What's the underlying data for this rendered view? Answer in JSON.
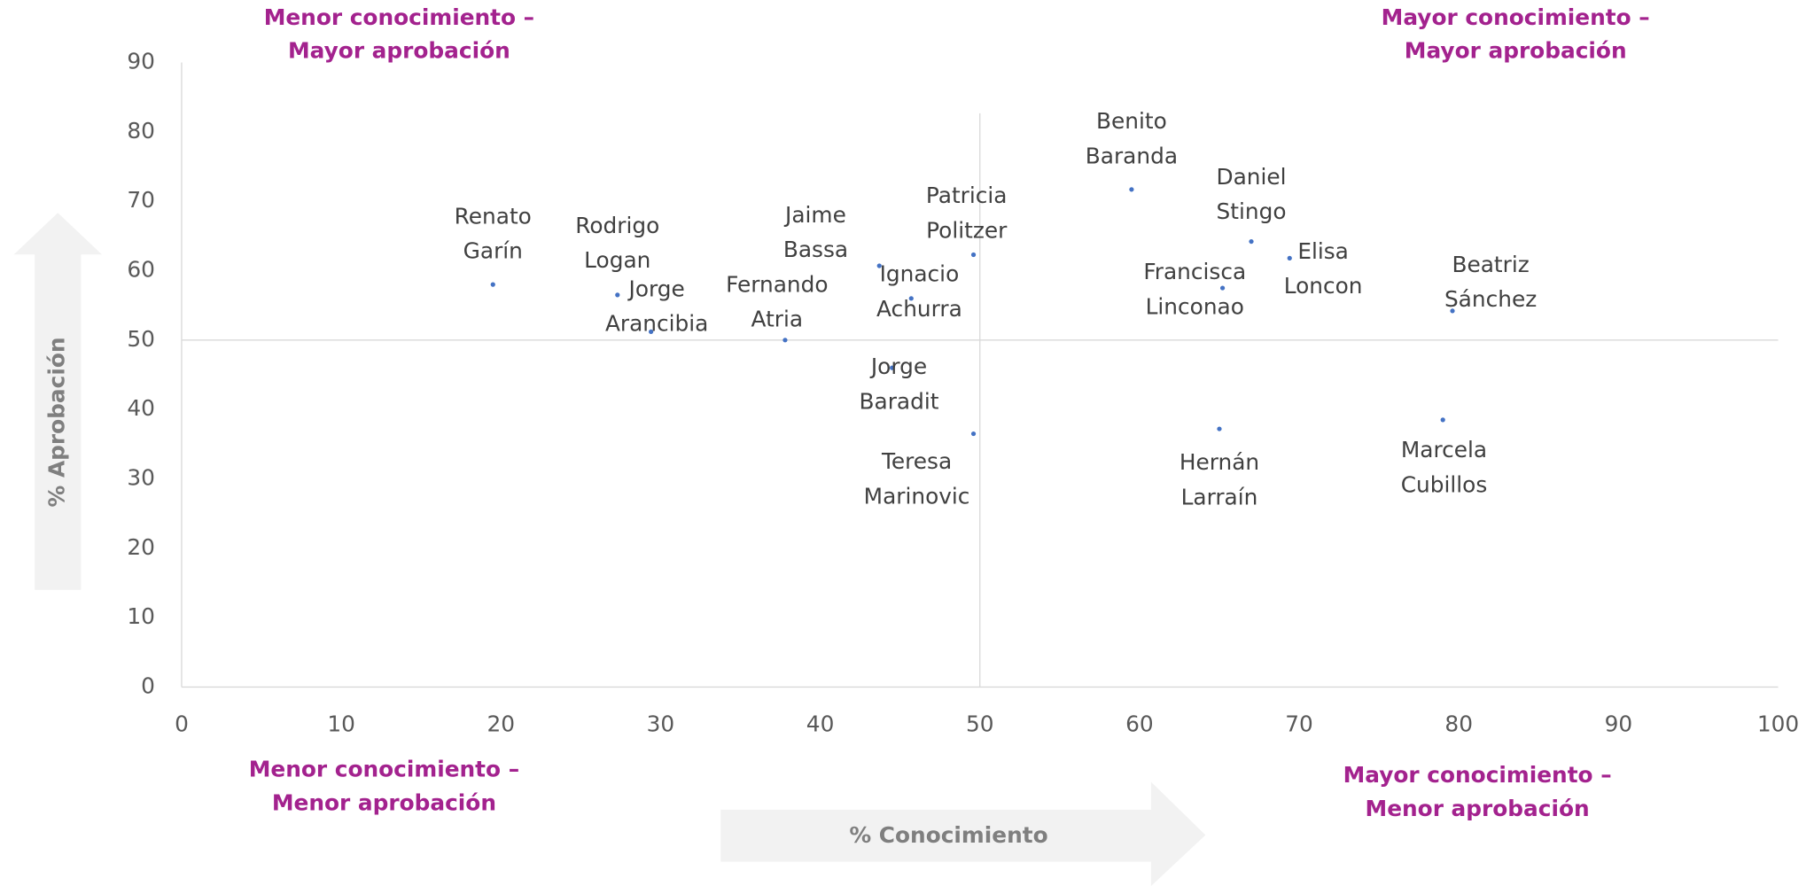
{
  "chart_data": {
    "type": "scatter",
    "x_label": "% Conocimiento",
    "y_label": "% Aprobación",
    "xlim": [
      0,
      100
    ],
    "ylim": [
      0,
      90
    ],
    "xticks": [
      0,
      10,
      20,
      30,
      40,
      50,
      60,
      70,
      80,
      90,
      100
    ],
    "yticks": [
      0,
      10,
      20,
      30,
      40,
      50,
      60,
      70,
      80,
      90
    ],
    "reference_lines": {
      "x": 50,
      "y": 50
    },
    "color": "#4472c4",
    "quadrant_labels": [
      [
        "Menor conocimiento –",
        "Mayor aprobación"
      ],
      [
        "Mayor conocimiento –",
        "Mayor aprobación"
      ],
      [
        "Menor conocimiento –",
        "Menor aprobación"
      ],
      [
        "Mayor conocimiento –",
        "Menor aprobación"
      ]
    ],
    "labels": [
      [
        "Renato",
        "Garín"
      ],
      [
        "Rodrigo",
        "Logan"
      ],
      [
        "Jorge",
        "Arancibia"
      ],
      [
        "Fernando",
        "Atria"
      ],
      [
        "Jaime",
        "Bassa"
      ],
      [
        "Ignacio",
        "Achurra"
      ],
      [
        "Jorge",
        "Baradit"
      ],
      [
        "Patricia",
        "Politzer"
      ],
      [
        "Teresa",
        "Marinovic"
      ],
      [
        "Benito",
        "Baranda"
      ],
      [
        "Daniel",
        "Stingo"
      ],
      [
        "Francisca",
        "Linconao"
      ],
      [
        "Elisa",
        "Loncon"
      ],
      [
        "Hernán",
        "Larraín"
      ],
      [
        "Beatriz",
        "Sánchez"
      ],
      [
        "Marcela",
        "Cubillos"
      ]
    ],
    "x": [
      19.5,
      27.3,
      29.4,
      37.8,
      43.7,
      45.7,
      44.5,
      49.6,
      49.6,
      59.5,
      67.0,
      65.2,
      69.4,
      65.0,
      79.6,
      79.0
    ],
    "y": [
      58.0,
      56.5,
      51.2,
      50.0,
      60.7,
      56.0,
      46.0,
      62.3,
      36.5,
      71.7,
      64.2,
      57.5,
      61.8,
      37.2,
      54.2,
      38.5
    ]
  }
}
